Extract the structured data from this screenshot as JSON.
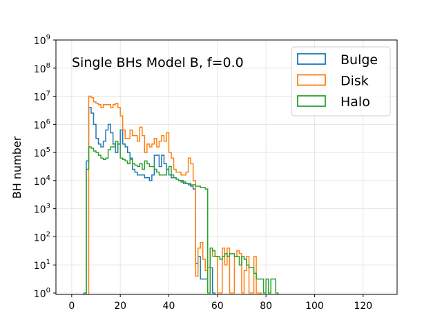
{
  "chart_data": {
    "type": "step-histogram",
    "annotation": "Single BHs Model B, f=0.0",
    "xlabel": "",
    "ylabel": "BH number",
    "xlim": [
      -6.5,
      134
    ],
    "ylim_log10": [
      -0.05,
      9
    ],
    "x_ticks": [
      0,
      20,
      40,
      60,
      80,
      100,
      120
    ],
    "y_ticks_log10": [
      0,
      1,
      2,
      3,
      4,
      5,
      6,
      7,
      8,
      9
    ],
    "y_tick_base": "10",
    "grid": true,
    "legend": {
      "placement": "top-right"
    },
    "bin_width": 1,
    "series": [
      {
        "name": "Bulge",
        "color": "#1f77b4",
        "bins": [
          [
            5,
            0
          ],
          [
            6,
            4.7
          ],
          [
            7,
            6.6
          ],
          [
            8,
            6.4
          ],
          [
            9,
            6.0
          ],
          [
            10,
            5.5
          ],
          [
            11,
            5.3
          ],
          [
            12,
            5.2
          ],
          [
            13,
            5.4
          ],
          [
            14,
            5.8
          ],
          [
            15,
            6.0
          ],
          [
            16,
            5.7
          ],
          [
            17,
            5.3
          ],
          [
            18,
            5.0
          ],
          [
            19,
            5.3
          ],
          [
            20,
            5.8
          ],
          [
            21,
            5.3
          ],
          [
            22,
            5.2
          ],
          [
            23,
            5.0
          ],
          [
            24,
            4.8
          ],
          [
            25,
            4.4
          ],
          [
            26,
            4.3
          ],
          [
            27,
            4.2
          ],
          [
            28,
            4.2
          ],
          [
            29,
            4.2
          ],
          [
            30,
            4.1
          ],
          [
            31,
            4.1
          ],
          [
            32,
            4.0
          ],
          [
            33,
            4.2
          ],
          [
            34,
            4.9
          ],
          [
            35,
            4.9
          ],
          [
            36,
            4.5
          ],
          [
            37,
            4.9
          ],
          [
            38,
            4.6
          ],
          [
            39,
            4.4
          ],
          [
            40,
            4.2
          ],
          [
            41,
            4.1
          ],
          [
            42,
            4.1
          ],
          [
            43,
            4.05
          ],
          [
            44,
            4.0
          ],
          [
            45,
            4.0
          ],
          [
            46,
            3.9
          ],
          [
            47,
            3.9
          ],
          [
            48,
            3.85
          ],
          [
            49,
            3.8
          ],
          [
            50,
            3.7
          ],
          [
            51,
            1.05
          ],
          [
            52,
            1.3
          ],
          [
            53,
            0.5
          ],
          [
            54,
            0.5
          ],
          [
            55,
            0.5
          ],
          [
            56,
            0.9
          ],
          [
            57,
            0.9
          ],
          [
            58,
            0.0
          ]
        ]
      },
      {
        "name": "Disk",
        "color": "#ff7f0e",
        "bins": [
          [
            7,
            7.0
          ],
          [
            8,
            6.95
          ],
          [
            9,
            6.8
          ],
          [
            10,
            6.75
          ],
          [
            11,
            6.7
          ],
          [
            12,
            6.6
          ],
          [
            13,
            6.7
          ],
          [
            14,
            6.7
          ],
          [
            15,
            6.7
          ],
          [
            16,
            6.6
          ],
          [
            17,
            6.7
          ],
          [
            18,
            6.75
          ],
          [
            19,
            6.6
          ],
          [
            20,
            6.3
          ],
          [
            21,
            5.8
          ],
          [
            22,
            5.5
          ],
          [
            23,
            5.5
          ],
          [
            24,
            5.8
          ],
          [
            25,
            5.6
          ],
          [
            26,
            5.6
          ],
          [
            27,
            5.4
          ],
          [
            28,
            5.9
          ],
          [
            29,
            5.6
          ],
          [
            30,
            5.0
          ],
          [
            31,
            5.3
          ],
          [
            32,
            5.2
          ],
          [
            33,
            5.3
          ],
          [
            34,
            5.5
          ],
          [
            35,
            5.2
          ],
          [
            36,
            5.4
          ],
          [
            37,
            5.6
          ],
          [
            38,
            5.4
          ],
          [
            39,
            5.7
          ],
          [
            40,
            5.0
          ],
          [
            41,
            4.8
          ],
          [
            42,
            4.4
          ],
          [
            43,
            4.3
          ],
          [
            44,
            4.3
          ],
          [
            45,
            4.2
          ],
          [
            46,
            4.2
          ],
          [
            47,
            4.3
          ],
          [
            48,
            4.8
          ],
          [
            49,
            4.6
          ],
          [
            50,
            4.0
          ],
          [
            51,
            0.6
          ],
          [
            52,
            1.6
          ],
          [
            53,
            1.8
          ],
          [
            54,
            1.2
          ],
          [
            55,
            0.8
          ],
          [
            56,
            0.9
          ],
          [
            57,
            1.6
          ],
          [
            58,
            1.3
          ],
          [
            59,
            1.3
          ],
          [
            60,
            0.0
          ],
          [
            61,
            0.0
          ],
          [
            62,
            1.6
          ],
          [
            63,
            1.0
          ],
          [
            64,
            1.6
          ],
          [
            65,
            0.0
          ],
          [
            66,
            0.0
          ],
          [
            67,
            1.3
          ],
          [
            68,
            1.5
          ],
          [
            69,
            1.4
          ],
          [
            70,
            0.0
          ],
          [
            71,
            0.8
          ],
          [
            72,
            1.3
          ],
          [
            73,
            0.0
          ],
          [
            74,
            0.0
          ],
          [
            75,
            1.3
          ],
          [
            76,
            0.0
          ],
          [
            77,
            0.0
          ]
        ]
      },
      {
        "name": "Halo",
        "color": "#2ca02c",
        "bins": [
          [
            6,
            4.4
          ],
          [
            7,
            5.2
          ],
          [
            8,
            5.15
          ],
          [
            9,
            5.05
          ],
          [
            10,
            5.0
          ],
          [
            11,
            4.9
          ],
          [
            12,
            4.8
          ],
          [
            13,
            4.75
          ],
          [
            14,
            4.8
          ],
          [
            15,
            5.1
          ],
          [
            16,
            5.2
          ],
          [
            17,
            5.2
          ],
          [
            18,
            5.4
          ],
          [
            19,
            5.3
          ],
          [
            20,
            4.8
          ],
          [
            21,
            4.75
          ],
          [
            22,
            4.7
          ],
          [
            23,
            4.6
          ],
          [
            24,
            4.75
          ],
          [
            25,
            4.6
          ],
          [
            26,
            4.55
          ],
          [
            27,
            4.5
          ],
          [
            28,
            4.6
          ],
          [
            29,
            4.4
          ],
          [
            30,
            4.7
          ],
          [
            31,
            4.6
          ],
          [
            32,
            4.5
          ],
          [
            33,
            4.5
          ],
          [
            34,
            4.4
          ],
          [
            35,
            4.3
          ],
          [
            36,
            4.2
          ],
          [
            37,
            4.2
          ],
          [
            38,
            4.2
          ],
          [
            39,
            4.4
          ],
          [
            40,
            4.5
          ],
          [
            41,
            4.2
          ],
          [
            42,
            4.1
          ],
          [
            43,
            4.05
          ],
          [
            44,
            4.0
          ],
          [
            45,
            3.95
          ],
          [
            46,
            3.95
          ],
          [
            47,
            3.9
          ],
          [
            48,
            3.9
          ],
          [
            49,
            3.85
          ],
          [
            50,
            3.85
          ],
          [
            51,
            3.8
          ],
          [
            52,
            3.8
          ],
          [
            53,
            3.75
          ],
          [
            54,
            3.75
          ],
          [
            55,
            3.7
          ],
          [
            56,
            0.0
          ],
          [
            57,
            1.6
          ],
          [
            58,
            1.5
          ],
          [
            59,
            1.3
          ],
          [
            60,
            1.3
          ],
          [
            61,
            1.2
          ],
          [
            62,
            1.3
          ],
          [
            63,
            1.4
          ],
          [
            64,
            1.3
          ],
          [
            65,
            1.4
          ],
          [
            66,
            1.4
          ],
          [
            67,
            1.3
          ],
          [
            68,
            1.3
          ],
          [
            69,
            1.0
          ],
          [
            70,
            1.3
          ],
          [
            71,
            1.2
          ],
          [
            72,
            1.0
          ],
          [
            73,
            0.9
          ],
          [
            74,
            0.9
          ],
          [
            75,
            0.7
          ],
          [
            76,
            0.5
          ],
          [
            77,
            0.5
          ],
          [
            78,
            0.5
          ],
          [
            79,
            0.0
          ],
          [
            80,
            0.5
          ],
          [
            81,
            0.0
          ],
          [
            82,
            0.5
          ],
          [
            83,
            0.5
          ],
          [
            84,
            0.0
          ]
        ]
      }
    ]
  }
}
